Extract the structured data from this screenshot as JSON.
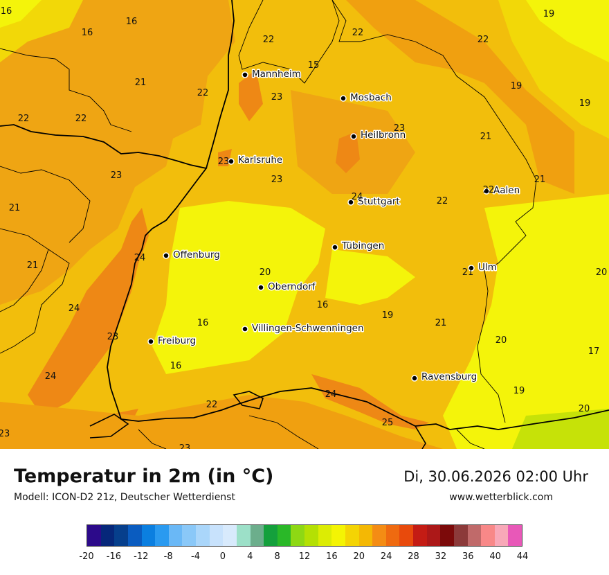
{
  "map": {
    "cities": [
      {
        "name": "Mannheim",
        "label": "Mannheim"
      },
      {
        "name": "Mosbach",
        "label": "Mosbach"
      },
      {
        "name": "Heilbronn",
        "label": "Heilbronn"
      },
      {
        "name": "Karlsruhe",
        "label": "Karlsruhe"
      },
      {
        "name": "Aalen",
        "label": "Aalen"
      },
      {
        "name": "Stuttgart",
        "label": "Stuttgart"
      },
      {
        "name": "Tuebingen",
        "label": "Tübingen"
      },
      {
        "name": "Offenburg",
        "label": "Offenburg"
      },
      {
        "name": "Ulm",
        "label": "Ulm"
      },
      {
        "name": "Oberndorf",
        "label": "Oberndorf"
      },
      {
        "name": "Villingen-Schwenningen",
        "label": "Villingen-Schwenningen"
      },
      {
        "name": "Freiburg",
        "label": "Freiburg"
      },
      {
        "name": "Ravensburg",
        "label": "Ravensburg"
      }
    ],
    "temperature_values": [
      "16",
      "16",
      "16",
      "22",
      "22",
      "19",
      "15",
      "22",
      "21",
      "22",
      "23",
      "19",
      "19",
      "22",
      "22",
      "23",
      "21",
      "23",
      "23",
      "22",
      "21",
      "21",
      "22",
      "21",
      "24",
      "24",
      "21",
      "20",
      "20",
      "21",
      "24",
      "16",
      "16",
      "19",
      "23",
      "21",
      "20",
      "16",
      "17",
      "24",
      "19",
      "22",
      "25",
      "20",
      "23",
      "23",
      "23"
    ]
  },
  "footer": {
    "title": "Temperatur in 2m (in °C)",
    "model": "Modell: ICON-D2 21z, Deutscher Wetterdienst",
    "datetime": "Di, 30.06.2026 02:00 Uhr",
    "website": "www.wetterblick.com"
  },
  "colorbar": {
    "ticks": [
      "-20",
      "-16",
      "-12",
      "-8",
      "-4",
      "0",
      "4",
      "8",
      "12",
      "16",
      "20",
      "24",
      "28",
      "32",
      "36",
      "40",
      "44"
    ],
    "colors": [
      "#2c0a8a",
      "#06277a",
      "#063f8c",
      "#0a5cc0",
      "#0b7fe0",
      "#2a9af0",
      "#6ab8f6",
      "#8ac8f8",
      "#aad6fa",
      "#c8e2fc",
      "#d8eafc",
      "#9ce0c8",
      "#6cae8c",
      "#14a03c",
      "#2ab828",
      "#8ed814",
      "#b4e004",
      "#dcec04",
      "#f4f404",
      "#f4d404",
      "#f4b804",
      "#f48c14",
      "#ef6a10",
      "#e84a0c",
      "#c41c14",
      "#ac1818",
      "#7c0a0a",
      "#8c3a3a",
      "#c06a6a",
      "#f88888",
      "#f8a8b8",
      "#e858b8"
    ]
  },
  "colors": {
    "map_base": "#f2be0c",
    "warm": "#f0a00f",
    "hot": "#ef8714",
    "cool": "#f4f40a",
    "mild": "#f2d808",
    "green": "#c6e208"
  }
}
